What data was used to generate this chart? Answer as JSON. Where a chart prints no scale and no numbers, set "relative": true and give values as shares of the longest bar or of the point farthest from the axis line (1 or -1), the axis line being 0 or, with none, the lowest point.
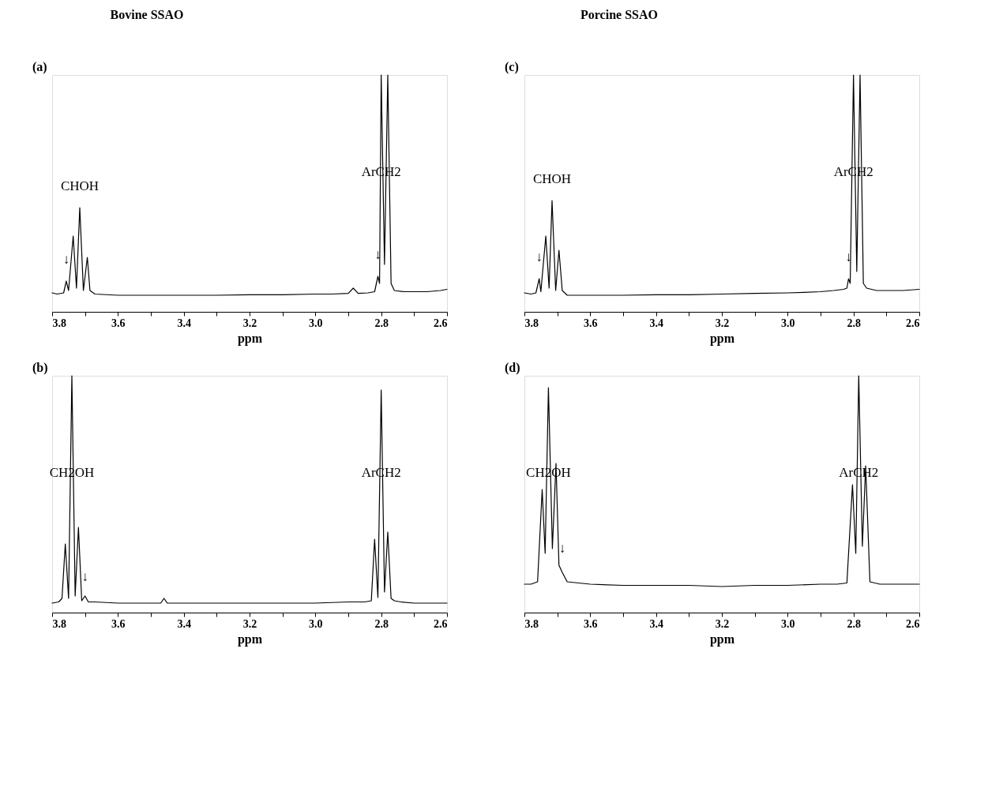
{
  "chart_data": [
    {
      "type": "line",
      "title": "Bovine SSAO",
      "subtitle": "(a)",
      "xlabel": "ppm",
      "relative": true,
      "xlim": [
        3.8,
        2.6
      ],
      "xticks": [
        3.8,
        {
          "value": 3.7,
          "label": null
        },
        3.6,
        {
          "value": 3.5,
          "label": null
        },
        3.4,
        {
          "value": 3.3,
          "label": null
        },
        3.2,
        {
          "value": 3.1,
          "label": null
        },
        {
          "value": 3,
          "label": "3.0"
        },
        {
          "value": 2.9,
          "label": null
        },
        2.8,
        {
          "value": 2.7,
          "label": null
        },
        2.6
      ],
      "grid": false,
      "line_style": "solid",
      "series": [
        {
          "color": "#000000",
          "x": [
            3.8,
            3.785,
            3.765,
            3.757,
            3.75,
            3.736,
            3.726,
            3.716,
            3.705,
            3.693,
            3.685,
            3.67,
            3.6,
            3.5,
            3.4,
            3.3,
            3.2,
            3.1,
            3.0,
            2.95,
            2.9,
            2.885,
            2.87,
            2.84,
            2.82,
            2.81,
            2.805,
            2.8,
            2.79,
            2.78,
            2.77,
            2.76,
            2.73,
            2.7,
            2.66,
            2.62,
            2.6
          ],
          "values": [
            0.08,
            0.075,
            0.08,
            0.13,
            0.09,
            0.32,
            0.1,
            0.44,
            0.09,
            0.23,
            0.09,
            0.075,
            0.07,
            0.07,
            0.07,
            0.07,
            0.072,
            0.072,
            0.075,
            0.075,
            0.078,
            0.1,
            0.078,
            0.08,
            0.085,
            0.15,
            0.12,
            1.0,
            0.2,
            1.0,
            0.12,
            0.09,
            0.085,
            0.085,
            0.085,
            0.09,
            0.095
          ]
        }
      ],
      "annotations": [
        "CHOH",
        "ArCH2",
        {
          "text": "↓",
          "x": 3.757,
          "y": 0.19
        },
        {
          "text": "↓",
          "x": 2.81,
          "y": 0.21
        }
      ]
    },
    {
      "type": "line",
      "title": "Porcine SSAO",
      "subtitle": "(c)",
      "xlabel": "ppm",
      "relative": true,
      "xlim": [
        3.8,
        2.6
      ],
      "xticks": [
        3.8,
        {
          "value": 3.7,
          "label": null
        },
        3.6,
        {
          "value": 3.5,
          "label": null
        },
        3.4,
        {
          "value": 3.3,
          "label": null
        },
        3.2,
        {
          "value": 3.1,
          "label": null
        },
        {
          "value": 3,
          "label": "3.0"
        },
        {
          "value": 2.9,
          "label": null
        },
        2.8,
        {
          "value": 2.7,
          "label": null
        },
        2.6
      ],
      "grid": false,
      "line_style": "solid",
      "series": [
        {
          "color": "#000000",
          "x": [
            3.8,
            3.78,
            3.765,
            3.755,
            3.75,
            3.735,
            3.725,
            3.716,
            3.705,
            3.695,
            3.685,
            3.67,
            3.6,
            3.5,
            3.4,
            3.3,
            3.2,
            3.1,
            3.0,
            2.95,
            2.9,
            2.86,
            2.83,
            2.82,
            2.815,
            2.81,
            2.8,
            2.79,
            2.78,
            2.77,
            2.76,
            2.73,
            2.7,
            2.65,
            2.6
          ],
          "values": [
            0.08,
            0.075,
            0.08,
            0.14,
            0.085,
            0.32,
            0.1,
            0.47,
            0.09,
            0.26,
            0.09,
            0.07,
            0.07,
            0.07,
            0.072,
            0.072,
            0.075,
            0.078,
            0.08,
            0.082,
            0.085,
            0.09,
            0.095,
            0.1,
            0.14,
            0.12,
            1.0,
            0.17,
            1.0,
            0.12,
            0.1,
            0.09,
            0.09,
            0.09,
            0.095
          ]
        }
      ],
      "annotations": [
        "CHOH",
        "ArCH2",
        {
          "text": "↓",
          "x": 3.755,
          "y": 0.2
        },
        {
          "text": "↓",
          "x": 2.815,
          "y": 0.2
        }
      ]
    },
    {
      "type": "line",
      "subtitle": "(b)",
      "xlabel": "ppm",
      "relative": true,
      "xlim": [
        3.8,
        2.6
      ],
      "xticks": [
        3.8,
        {
          "value": 3.7,
          "label": null
        },
        3.6,
        {
          "value": 3.5,
          "label": null
        },
        3.4,
        {
          "value": 3.3,
          "label": null
        },
        3.2,
        {
          "value": 3.1,
          "label": null
        },
        {
          "value": 3,
          "label": "3.0"
        },
        {
          "value": 2.9,
          "label": null
        },
        2.8,
        {
          "value": 2.7,
          "label": null
        },
        2.6
      ],
      "grid": false,
      "line_style": "solid",
      "series": [
        {
          "color": "#000000",
          "x": [
            3.8,
            3.78,
            3.77,
            3.76,
            3.75,
            3.74,
            3.73,
            3.72,
            3.71,
            3.7,
            3.69,
            3.67,
            3.6,
            3.5,
            3.47,
            3.46,
            3.45,
            3.4,
            3.3,
            3.2,
            3.1,
            3.0,
            2.9,
            2.85,
            2.83,
            2.82,
            2.81,
            2.8,
            2.79,
            2.78,
            2.77,
            2.76,
            2.74,
            2.7,
            2.65,
            2.6
          ],
          "values": [
            0.04,
            0.045,
            0.06,
            0.29,
            0.06,
            1.0,
            0.07,
            0.36,
            0.05,
            0.07,
            0.045,
            0.045,
            0.04,
            0.04,
            0.04,
            0.06,
            0.04,
            0.04,
            0.04,
            0.04,
            0.04,
            0.04,
            0.045,
            0.045,
            0.05,
            0.31,
            0.064,
            0.94,
            0.087,
            0.34,
            0.06,
            0.05,
            0.045,
            0.04,
            0.04,
            0.04
          ]
        }
      ],
      "annotations": [
        "CH2OH",
        "ArCH2",
        {
          "text": "↓",
          "x": 3.7,
          "y": 0.12
        }
      ]
    },
    {
      "type": "line",
      "subtitle": "(d)",
      "xlabel": "ppm",
      "relative": true,
      "xlim": [
        3.8,
        2.6
      ],
      "xticks": [
        3.8,
        {
          "value": 3.7,
          "label": null
        },
        3.6,
        {
          "value": 3.5,
          "label": null
        },
        3.4,
        {
          "value": 3.3,
          "label": null
        },
        3.2,
        {
          "value": 3.1,
          "label": null
        },
        {
          "value": 3,
          "label": "3.0"
        },
        {
          "value": 2.9,
          "label": null
        },
        2.8,
        {
          "value": 2.7,
          "label": null
        },
        2.6
      ],
      "grid": false,
      "line_style": "solid",
      "series": [
        {
          "color": "#000000",
          "x": [
            3.8,
            3.78,
            3.76,
            3.746,
            3.737,
            3.727,
            3.715,
            3.704,
            3.695,
            3.685,
            3.67,
            3.6,
            3.5,
            3.4,
            3.3,
            3.2,
            3.1,
            3.0,
            2.9,
            2.85,
            2.82,
            2.803,
            2.793,
            2.784,
            2.773,
            2.763,
            2.75,
            2.72,
            2.68,
            2.6
          ],
          "values": [
            0.12,
            0.12,
            0.13,
            0.52,
            0.25,
            0.95,
            0.27,
            0.63,
            0.2,
            0.17,
            0.13,
            0.12,
            0.115,
            0.115,
            0.115,
            0.11,
            0.115,
            0.115,
            0.12,
            0.12,
            0.125,
            0.54,
            0.25,
            1.0,
            0.28,
            0.62,
            0.13,
            0.12,
            0.12,
            0.12
          ]
        }
      ],
      "annotations": [
        "CH2OH",
        "ArCH2",
        {
          "text": "↓",
          "x": 3.685,
          "y": 0.24
        }
      ]
    }
  ]
}
